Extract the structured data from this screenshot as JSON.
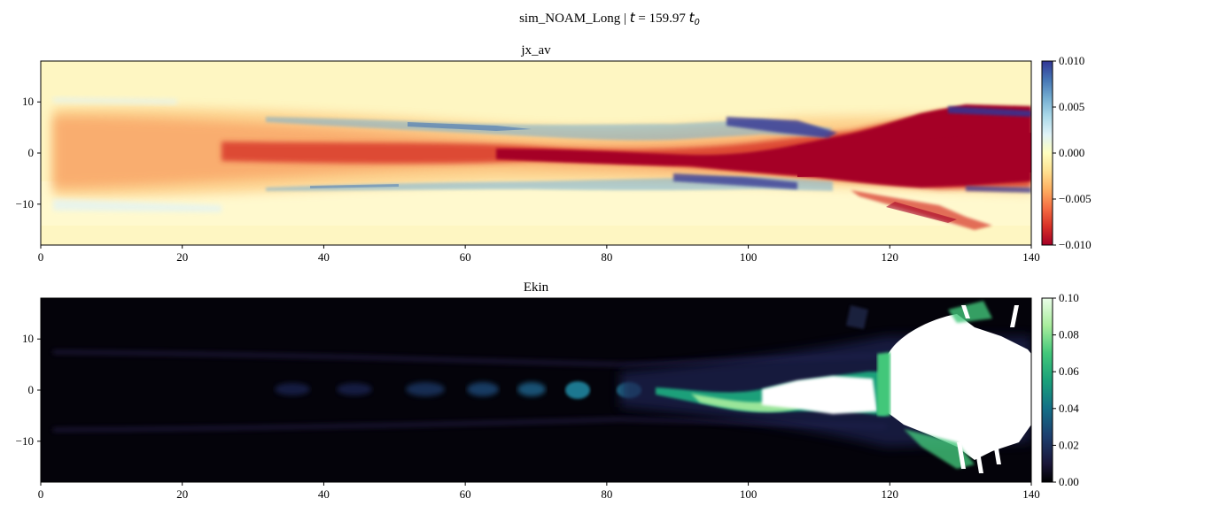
{
  "figure": {
    "suptitle_prefix": "sim_NOAM_Long | ",
    "suptitle_math_t": "t",
    "suptitle_math_eq": " = 159.97 ",
    "suptitle_math_t0": "t",
    "suptitle_math_sub": "0"
  },
  "colors": {
    "rdylbu_low": "#a50026",
    "rdylbu_high": "#313695",
    "ekin_low": "#000000",
    "ekin_high": "#ffffff"
  },
  "chart_data": [
    {
      "type": "heatmap",
      "title": "jx_av",
      "xlim": [
        0,
        140
      ],
      "ylim": [
        -18,
        18
      ],
      "x_ticks": [
        0,
        20,
        40,
        60,
        80,
        100,
        120,
        140
      ],
      "x_tick_labels": [
        "0",
        "20",
        "40",
        "60",
        "80",
        "100",
        "120",
        "140"
      ],
      "y_ticks": [
        10,
        0,
        -10
      ],
      "y_tick_labels": [
        "10",
        "0",
        "−10"
      ],
      "colorbar": {
        "colormap": "RdYlBu",
        "range": [
          -0.01,
          0.01
        ],
        "ticks": [
          0.01,
          0.005,
          0.0,
          -0.005,
          -0.01
        ],
        "tick_labels": [
          "0.010",
          "0.005",
          "0.000",
          "−0.005",
          "−0.010"
        ]
      },
      "features": [
        {
          "kind": "negative channel sheath (red)",
          "x_range": [
            0,
            140
          ],
          "y_outer": [
            8,
            12
          ]
        },
        {
          "kind": "saturated core (red)",
          "x_range": [
            60,
            140
          ],
          "y_center": [
            0,
            2
          ]
        },
        {
          "kind": "positive return current (blue)",
          "x_range": [
            30,
            140
          ],
          "y_edges": [
            -8,
            8
          ]
        }
      ]
    },
    {
      "type": "heatmap",
      "title": "Ekin",
      "xlim": [
        0,
        140
      ],
      "ylim": [
        -18,
        18
      ],
      "x_ticks": [
        0,
        20,
        40,
        60,
        80,
        100,
        120,
        140
      ],
      "x_tick_labels": [
        "0",
        "20",
        "40",
        "60",
        "80",
        "100",
        "120",
        "140"
      ],
      "y_ticks": [
        10,
        0,
        -10
      ],
      "y_tick_labels": [
        "10",
        "0",
        "−10"
      ],
      "colorbar": {
        "colormap": "cubehelix-green",
        "range": [
          0.0,
          0.1
        ],
        "ticks": [
          0.1,
          0.08,
          0.06,
          0.04,
          0.02,
          0.0
        ],
        "tick_labels": [
          "0.10",
          "0.08",
          "0.06",
          "0.04",
          "0.02",
          "0.00"
        ]
      },
      "features": [
        {
          "kind": "faint beamlets",
          "x_range": [
            0,
            95
          ],
          "y_center": 0
        },
        {
          "kind": "saturated hot region",
          "x_range": [
            100,
            140
          ],
          "y_center": 0
        }
      ]
    }
  ]
}
